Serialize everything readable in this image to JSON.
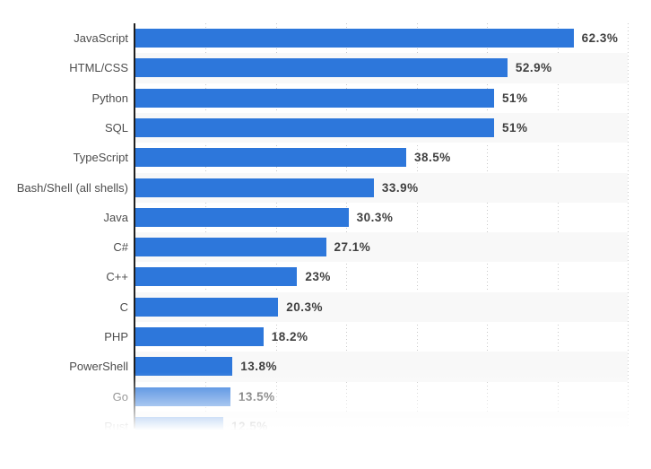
{
  "chart_data": {
    "type": "bar",
    "orientation": "horizontal",
    "title": "",
    "xlabel": "",
    "ylabel": "",
    "xlim": [
      0,
      70
    ],
    "gridline_step": 10,
    "grid": "dotted-vertical",
    "legend": "none",
    "bar_color": "#2d77db",
    "stripe_color": "#f8f8f8",
    "categories": [
      "JavaScript",
      "HTML/CSS",
      "Python",
      "SQL",
      "TypeScript",
      "Bash/Shell (all shells)",
      "Java",
      "C#",
      "C++",
      "C",
      "PHP",
      "PowerShell",
      "Go",
      "Rust"
    ],
    "values": [
      62.3,
      52.9,
      51,
      51,
      38.5,
      33.9,
      30.3,
      27.1,
      23,
      20.3,
      18.2,
      13.8,
      13.5,
      12.5
    ],
    "value_labels": [
      "62.3%",
      "52.9%",
      "51%",
      "51%",
      "38.5%",
      "33.9%",
      "30.3%",
      "27.1%",
      "23%",
      "20.3%",
      "18.2%",
      "13.8%",
      "13.5%",
      "12.5%"
    ],
    "last_row_faded": true
  }
}
